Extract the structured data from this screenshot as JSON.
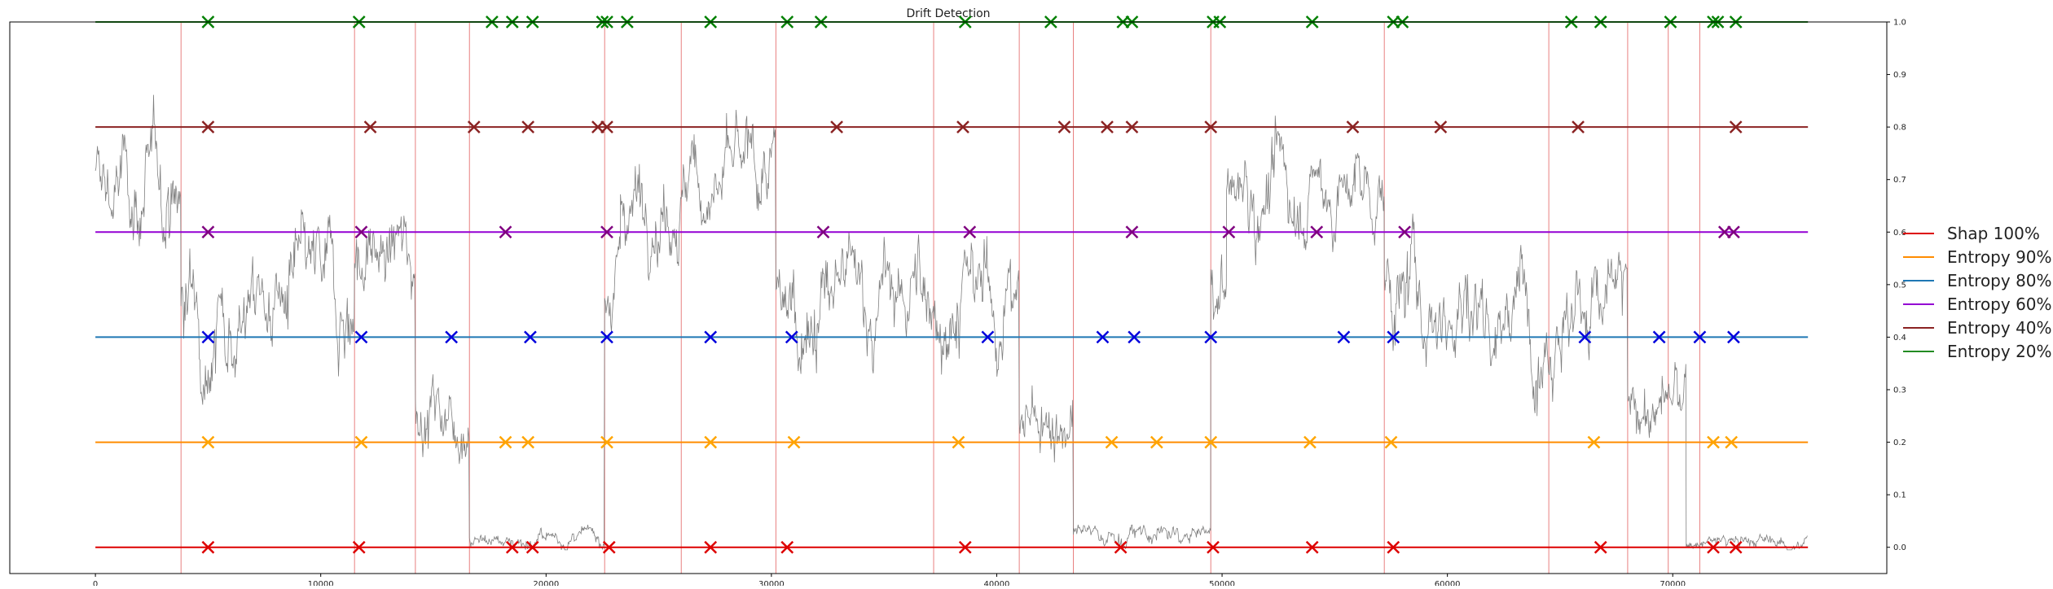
{
  "chart_data": {
    "type": "line",
    "title": "Drift Detection",
    "xlabel": "",
    "ylabel": "",
    "xlim": [
      -3800,
      79500
    ],
    "ylim": [
      -0.05,
      1.0
    ],
    "xticks": [
      0,
      10000,
      20000,
      30000,
      40000,
      50000,
      60000,
      70000
    ],
    "xtick_labels": [
      "0",
      "10000",
      "20000",
      "30000",
      "40000",
      "50000",
      "60000",
      "70000"
    ],
    "yticks": [
      0.0,
      0.1,
      0.2,
      0.3,
      0.4,
      0.5,
      0.6,
      0.7,
      0.8,
      0.9,
      1.0
    ],
    "ytick_labels": [
      "0.0",
      "0.1",
      "0.2",
      "0.3",
      "0.4",
      "0.5",
      "0.6",
      "0.7",
      "0.8",
      "0.9",
      "1.0"
    ],
    "y_axis_side": "right",
    "grid": false,
    "legend_position": "right",
    "signal": {
      "color": "#808080",
      "description_segments": [
        {
          "x": [
            0,
            3800
          ],
          "level": 0.68,
          "noise": 0.07
        },
        {
          "x": [
            3800,
            11500
          ],
          "level": 0.47,
          "noise": 0.07
        },
        {
          "x": [
            11500,
            14200
          ],
          "level": 0.55,
          "noise": 0.06
        },
        {
          "x": [
            14200,
            16600
          ],
          "level": 0.27,
          "noise": 0.05
        },
        {
          "x": [
            16600,
            22600
          ],
          "level": 0.015,
          "noise": 0.012
        },
        {
          "x": [
            22600,
            23300
          ],
          "level": 0.5,
          "noise": 0.06
        },
        {
          "x": [
            23300,
            30200
          ],
          "level": 0.69,
          "noise": 0.06
        },
        {
          "x": [
            30200,
            41000
          ],
          "level": 0.47,
          "noise": 0.07
        },
        {
          "x": [
            41000,
            43400
          ],
          "level": 0.25,
          "noise": 0.05
        },
        {
          "x": [
            43400,
            49500
          ],
          "level": 0.02,
          "noise": 0.015
        },
        {
          "x": [
            49500,
            50200
          ],
          "level": 0.5,
          "noise": 0.06
        },
        {
          "x": [
            50200,
            57200
          ],
          "level": 0.68,
          "noise": 0.06
        },
        {
          "x": [
            57200,
            68000
          ],
          "level": 0.47,
          "noise": 0.07
        },
        {
          "x": [
            68000,
            70600
          ],
          "level": 0.27,
          "noise": 0.05
        },
        {
          "x": [
            70600,
            76000
          ],
          "level": 0.01,
          "noise": 0.01
        }
      ]
    },
    "drift_lines": {
      "color": "#e88080",
      "x": [
        3800,
        11500,
        14200,
        16600,
        22600,
        26000,
        30200,
        37200,
        41000,
        43400,
        49500,
        57200,
        64500,
        68000,
        69800,
        71200
      ]
    },
    "series": [
      {
        "name": "Shap 100%",
        "line_color": "#dd0000",
        "marker_color": "#dd0000",
        "y": 0.0,
        "detections_x": [
          5000,
          11700,
          18500,
          19400,
          22800,
          27300,
          30700,
          38600,
          45500,
          49600,
          54000,
          57600,
          66800,
          71800,
          72800
        ]
      },
      {
        "name": "Entropy 90%",
        "line_color": "#ff8c00",
        "marker_color": "#ffa500",
        "y": 0.2,
        "detections_x": [
          5000,
          11800,
          18200,
          19200,
          22700,
          27300,
          31000,
          38300,
          45100,
          47100,
          49500,
          53900,
          57500,
          66500,
          71800,
          72600
        ]
      },
      {
        "name": "Entropy 80%",
        "line_color": "#1f77b4",
        "marker_color": "#0000dd",
        "y": 0.4,
        "detections_x": [
          5000,
          11800,
          15800,
          19300,
          22700,
          27300,
          30900,
          39600,
          44700,
          46100,
          49500,
          55400,
          57600,
          66100,
          69400,
          71200,
          72700
        ]
      },
      {
        "name": "Entropy 60%",
        "line_color": "#9400d3",
        "marker_color": "#800080",
        "y": 0.6,
        "detections_x": [
          5000,
          11800,
          18200,
          22700,
          32300,
          38800,
          46000,
          50300,
          54200,
          58100,
          72300,
          72700
        ]
      },
      {
        "name": "Entropy 40%",
        "line_color": "#8b2323",
        "marker_color": "#8b2323",
        "y": 0.8,
        "detections_x": [
          5000,
          12200,
          16800,
          19200,
          22300,
          22700,
          32900,
          38500,
          43000,
          44900,
          46000,
          49500,
          55800,
          59700,
          65800,
          72800
        ]
      },
      {
        "name": "Entropy 20%",
        "line_color": "#228b22",
        "marker_color": "#008000",
        "y": 1.0,
        "detections_x": [
          5000,
          11700,
          17600,
          18500,
          19400,
          22500,
          22700,
          23600,
          27300,
          30700,
          32200,
          38600,
          42400,
          45600,
          46000,
          49600,
          49900,
          54000,
          57600,
          58000,
          65500,
          66800,
          69900,
          71800,
          72000,
          72800
        ]
      }
    ]
  }
}
